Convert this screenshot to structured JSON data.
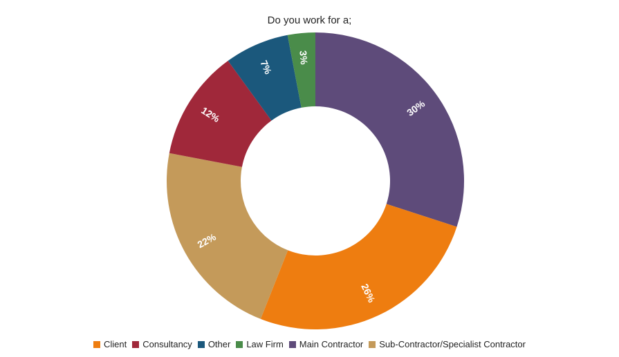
{
  "chart_data": {
    "type": "pie",
    "title": "Do you work for a;",
    "donut": true,
    "legend_position": "bottom",
    "series": [
      {
        "name": "Main Contractor",
        "value": 30,
        "label": "30%",
        "color": "#5e4b7a"
      },
      {
        "name": "Client",
        "value": 26,
        "label": "26%",
        "color": "#ee7d10"
      },
      {
        "name": "Sub-Contractor/Specialist Contractor",
        "value": 22,
        "label": "22%",
        "color": "#c49a5a"
      },
      {
        "name": "Consultancy",
        "value": 12,
        "label": "12%",
        "color": "#a0283a"
      },
      {
        "name": "Other",
        "value": 7,
        "label": "7%",
        "color": "#1b587c"
      },
      {
        "name": "Law Firm",
        "value": 3,
        "label": "3%",
        "color": "#4a8c4a"
      }
    ],
    "legend": [
      {
        "label": "Client",
        "color": "#ee7d10"
      },
      {
        "label": "Consultancy",
        "color": "#a0283a"
      },
      {
        "label": "Other",
        "color": "#1b587c"
      },
      {
        "label": "Law Firm",
        "color": "#4a8c4a"
      },
      {
        "label": "Main Contractor",
        "color": "#5e4b7a"
      },
      {
        "label": "Sub-Contractor/Specialist Contractor",
        "color": "#c49a5a"
      }
    ]
  }
}
